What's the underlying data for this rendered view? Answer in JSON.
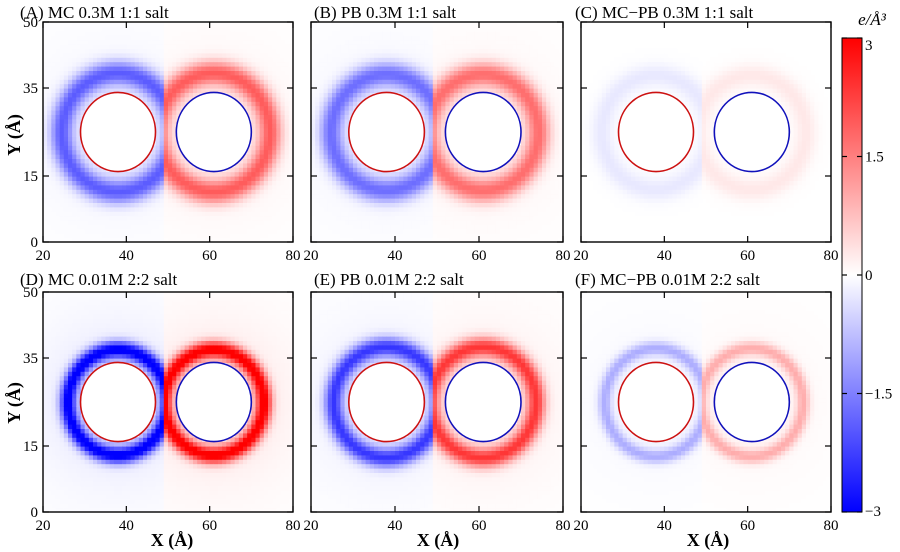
{
  "chart_data": {
    "type": "heatmap",
    "x_axis": {
      "label": "X (Å)",
      "ticks": [
        20,
        40,
        60,
        80
      ],
      "range": [
        20,
        80
      ]
    },
    "y_axis": {
      "label": "Y (Å)",
      "ticks": [
        0,
        15,
        35,
        50
      ],
      "range": [
        0,
        50
      ]
    },
    "colorbar": {
      "label": "e/Å³",
      "ticks": [
        3,
        1.5,
        0,
        -1.5,
        -3
      ],
      "tick_labels": [
        "3",
        "1.5",
        "0",
        "−1.5",
        "−3"
      ],
      "range": [
        -3,
        3
      ],
      "colors": {
        "positive": "#ff0000",
        "zero": "#ffffff",
        "negative": "#0000ff"
      }
    },
    "spheres": [
      {
        "name": "left-sphere",
        "center": [
          38,
          25
        ],
        "radius": 9,
        "outline_color": "#cc1111"
      },
      {
        "name": "right-sphere",
        "center": [
          61,
          25
        ],
        "radius": 9,
        "outline_color": "#1111bb"
      }
    ],
    "panels": [
      {
        "id": "A",
        "title": "(A) MC 0.3M 1:1 salt",
        "peak_charge": 1.8,
        "shell_radius": 13.5,
        "shell_width": 2.7
      },
      {
        "id": "B",
        "title": "(B) PB 0.3M 1:1 salt",
        "peak_charge": 1.6,
        "shell_radius": 13.2,
        "shell_width": 2.7
      },
      {
        "id": "C",
        "title": "(C) MC−PB 0.3M 1:1 salt",
        "peak_charge": 0.25,
        "shell_radius": 13.0,
        "shell_width": 2.5
      },
      {
        "id": "D",
        "title": "(D) MC 0.01M 2:2 salt",
        "peak_charge": 3.0,
        "shell_radius": 12.0,
        "shell_width": 1.9
      },
      {
        "id": "E",
        "title": "(E) PB 0.01M 2:2 salt",
        "peak_charge": 2.2,
        "shell_radius": 12.6,
        "shell_width": 2.2
      },
      {
        "id": "F",
        "title": "(F) MC−PB 0.01M 2:2 salt",
        "peak_charge": 0.9,
        "shell_radius": 12.3,
        "shell_width": 1.6
      }
    ]
  }
}
